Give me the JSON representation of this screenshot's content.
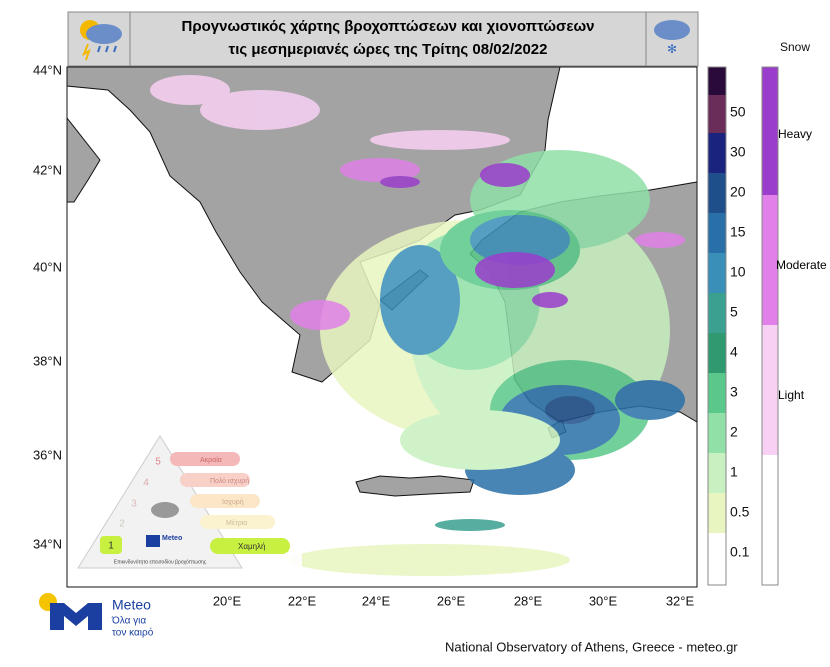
{
  "header": {
    "title_line1": "Προγνωστικός χάρτης βροχοπτώσεων και χιονοπτώσεων",
    "title_line2": "τις μεσημεριανές ώρες της Τρίτης 08/02/2022"
  },
  "map": {
    "lat_labels": [
      "44°N",
      "42°N",
      "40°N",
      "38°N",
      "36°N",
      "34°N"
    ],
    "lon_labels": [
      "20°E",
      "22°E",
      "24°E",
      "26°E",
      "28°E",
      "30°E",
      "32°E"
    ]
  },
  "precip_legend": {
    "labels": [
      "50",
      "30",
      "20",
      "15",
      "10",
      "5",
      "4",
      "3",
      "2",
      "1",
      "0.5",
      "0.1"
    ]
  },
  "snow_legend": {
    "title": "Snow",
    "labels": [
      "Heavy",
      "Moderate",
      "Light"
    ]
  },
  "inset": {
    "levels": [
      "Ακραία",
      "Πολύ ισχυρή",
      "Ισχυρή",
      "Μέτρια",
      "Χαμηλή"
    ],
    "numbers": [
      "5",
      "4",
      "3",
      "2",
      "1"
    ],
    "brand": "Meteo",
    "caption": "Επικινδυνότητα επεισοδίου βροχόπτωσης"
  },
  "logo": {
    "name": "Meteo",
    "slogan_line1": "Όλα για",
    "slogan_line2": "τον καιρό"
  },
  "footer": "National Observatory of Athens, Greece - meteo.gr"
}
